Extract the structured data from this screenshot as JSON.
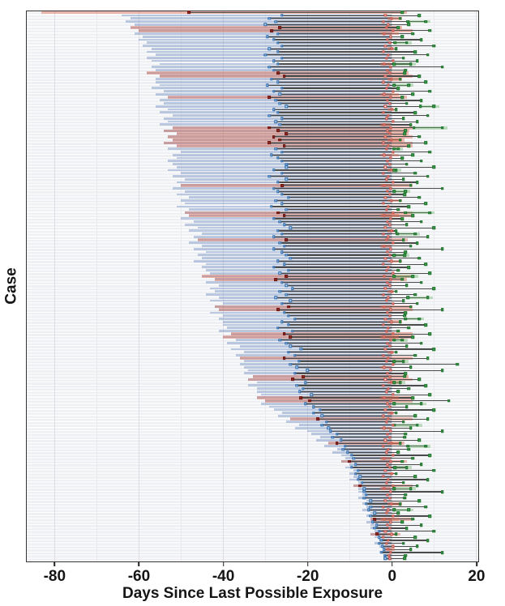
{
  "chart_data": {
    "type": "bar",
    "variant": "horizontal-interval-timeline",
    "title": "",
    "xlabel": "Days Since Last Possible Exposure",
    "ylabel": "Case",
    "n_cases": 181,
    "xlim": [
      -86.6,
      20.4
    ],
    "grid": "vertical-major-and-minor",
    "xticks": [
      -80,
      -60,
      -40,
      -20,
      0,
      20
    ],
    "xticklabels": [
      "-80",
      "-60",
      "-40",
      "-20",
      "0",
      "20"
    ],
    "xticks_minor": [
      -70,
      -50,
      -30,
      -10,
      10
    ],
    "colors": {
      "exposure_band": "rgba(99,134,191,0.42)",
      "detection_overlap_band": "rgba(90,100,115,0.38)",
      "onset_band_salmon": "rgba(220,106,82,0.45)",
      "detection_band_green": "rgba(96,176,96,0.38)",
      "stem_line": "#4b4b4b",
      "marker_blue": "#2565a8",
      "marker_red_open": "#c0392b",
      "marker_dark_red": "#8e2620",
      "marker_green": "#3da14d"
    },
    "case_fields": [
      "exposure_left",
      "mid_marker",
      "onset_marker",
      "detection_marker",
      "band_type(0=normal,1=wide-salmon,2=salmon-only)",
      "detection_band_width",
      "onset_band_width"
    ],
    "cases": [
      [
        -83,
        -48,
        -1,
        2.5,
        2,
        0,
        0
      ],
      [
        -64,
        -26,
        -1.5,
        6.5,
        0,
        0,
        0
      ],
      [
        -62,
        -29,
        0,
        2,
        0,
        0,
        3.5
      ],
      [
        -63,
        -27.5,
        -2,
        8,
        0,
        4.5,
        0
      ],
      [
        -61,
        -30,
        -0.8,
        4,
        0,
        0,
        0
      ],
      [
        -62,
        -26.5,
        -1.2,
        1.5,
        1,
        0,
        0
      ],
      [
        -60,
        -28.5,
        0.3,
        9,
        1,
        0,
        0
      ],
      [
        -61,
        -27,
        -1.8,
        5,
        0,
        0,
        4.5
      ],
      [
        -59,
        -29.5,
        -0.3,
        2.5,
        0,
        0,
        0
      ],
      [
        -60,
        -28,
        -1,
        7,
        0,
        0,
        0
      ],
      [
        -58,
        -27,
        -0.5,
        3.5,
        0,
        3,
        0
      ],
      [
        -59,
        -26,
        -1.5,
        10,
        0,
        0,
        0
      ],
      [
        -57,
        -29,
        0,
        1,
        0,
        0,
        1.5
      ],
      [
        -58,
        -27,
        -2,
        5.5,
        0,
        0,
        0
      ],
      [
        -56,
        -30,
        -0.8,
        8.5,
        0,
        0,
        0
      ],
      [
        -58,
        -26,
        -1.2,
        2.8,
        0,
        0,
        0
      ],
      [
        -57,
        -28,
        0.3,
        6,
        0,
        0,
        0
      ],
      [
        -55,
        -27,
        -1.8,
        4.5,
        0,
        6.5,
        2.5
      ],
      [
        -57,
        -29,
        -0.3,
        12,
        0,
        0,
        0
      ],
      [
        -56,
        -28,
        -1,
        3.2,
        0,
        0,
        0
      ],
      [
        -58,
        -27,
        -0.5,
        3,
        1,
        0,
        0
      ],
      [
        -55,
        -25.5,
        -1.5,
        6.5,
        1,
        0,
        0
      ],
      [
        -56,
        -28.5,
        0,
        2,
        0,
        0,
        3.5
      ],
      [
        -56,
        -27,
        -2,
        8,
        0,
        0,
        0
      ],
      [
        -55,
        -29.5,
        -0.8,
        4,
        0,
        5,
        0
      ],
      [
        -57,
        -26,
        -1.2,
        1.5,
        0,
        0,
        0
      ],
      [
        -54,
        -28,
        0.3,
        9,
        0,
        0,
        0
      ],
      [
        -56,
        -26.5,
        -1.8,
        5,
        0,
        0,
        4.5
      ],
      [
        -53,
        -29,
        -0.3,
        2.5,
        1,
        0,
        0
      ],
      [
        -55,
        -27.5,
        -1,
        7,
        0,
        0,
        0
      ],
      [
        -54,
        -26.5,
        -0.5,
        3.5,
        0,
        0,
        0
      ],
      [
        -56,
        -25,
        -1.5,
        10,
        0,
        3.5,
        0
      ],
      [
        -53,
        -28,
        0,
        1,
        0,
        0,
        1.5
      ],
      [
        -55,
        -27,
        -2,
        5.5,
        0,
        0,
        0
      ],
      [
        -52,
        -29,
        -0.8,
        8.5,
        0,
        0,
        0
      ],
      [
        -54,
        -26,
        -1.2,
        2.8,
        0,
        0,
        0
      ],
      [
        -53,
        -27.5,
        0.3,
        6,
        0,
        0,
        0
      ],
      [
        -55,
        -26.5,
        -1.8,
        4.5,
        0,
        0,
        2.5
      ],
      [
        -52,
        -29,
        -0.3,
        12,
        1,
        7,
        0
      ],
      [
        -54,
        -27,
        -1,
        3.2,
        1,
        0,
        0
      ],
      [
        -51,
        -25,
        -0.5,
        3,
        1,
        0,
        0
      ],
      [
        -53,
        -28,
        -1.5,
        6.5,
        1,
        0,
        0
      ],
      [
        -52,
        -26.5,
        0,
        2,
        1,
        0,
        3.5
      ],
      [
        -54,
        -29,
        -2,
        8,
        1,
        0,
        0
      ],
      [
        -51,
        -25.5,
        -0.8,
        4,
        1,
        0,
        0
      ],
      [
        -53,
        -27.5,
        -1.2,
        1.5,
        0,
        5.5,
        0
      ],
      [
        -50,
        -26,
        0.3,
        9,
        0,
        0,
        0
      ],
      [
        -52,
        -28.5,
        -1.8,
        5,
        0,
        0,
        4.5
      ],
      [
        -51,
        -27,
        -0.3,
        2.5,
        0,
        0,
        0
      ],
      [
        -53,
        -26,
        -1,
        7,
        0,
        0,
        0
      ],
      [
        -52,
        -25,
        -0.5,
        3.5,
        0,
        0,
        0
      ],
      [
        -51,
        -25,
        -1.5,
        10,
        0,
        0,
        0
      ],
      [
        -53,
        -28,
        0,
        1,
        0,
        4,
        1.5
      ],
      [
        -50,
        -26,
        -2,
        5.5,
        0,
        0,
        0
      ],
      [
        -52,
        -29,
        -0.8,
        8.5,
        0,
        0,
        0
      ],
      [
        -49,
        -25,
        -1.2,
        2.8,
        0,
        0,
        0
      ],
      [
        -51,
        -27,
        0.3,
        6,
        0,
        0,
        0
      ],
      [
        -50,
        -26,
        -1.8,
        4.5,
        1,
        0,
        2.5
      ],
      [
        -52,
        -28,
        -0.3,
        12,
        0,
        0,
        0
      ],
      [
        -49,
        -27,
        -1,
        3.2,
        0,
        7.5,
        0
      ],
      [
        -51,
        -26,
        -0.5,
        3,
        0,
        0,
        0
      ],
      [
        -48,
        -24.5,
        -1.5,
        6.5,
        0,
        0,
        0
      ],
      [
        -50,
        -27.5,
        0,
        2,
        0,
        0,
        3.5
      ],
      [
        -49,
        -26,
        -2,
        8,
        0,
        0,
        0
      ],
      [
        -51,
        -28.5,
        -0.8,
        4,
        0,
        0,
        0
      ],
      [
        -48,
        -25,
        -1.2,
        1.5,
        0,
        0,
        0
      ],
      [
        -49,
        -27,
        0.3,
        9,
        1,
        6,
        0
      ],
      [
        -48,
        -25.5,
        -1.8,
        5,
        1,
        0,
        4.5
      ],
      [
        -50,
        -28,
        -0.3,
        2.5,
        0,
        0,
        0
      ],
      [
        -47,
        -26.5,
        -1,
        7,
        0,
        0,
        0
      ],
      [
        -49,
        -25.5,
        -0.5,
        3.5,
        0,
        0,
        0
      ],
      [
        -46,
        -24,
        -1.5,
        10,
        0,
        0,
        0
      ],
      [
        -48,
        -27,
        0,
        1,
        0,
        0,
        1.5
      ],
      [
        -45,
        -26,
        -2,
        5.5,
        0,
        4.5,
        0
      ],
      [
        -47,
        -28,
        -0.8,
        8.5,
        0,
        0,
        0
      ],
      [
        -46,
        -25,
        -1.2,
        2.8,
        1,
        0,
        0
      ],
      [
        -48,
        -26.5,
        0.3,
        6,
        0,
        0,
        0
      ],
      [
        -45,
        -25.5,
        -1.8,
        4.5,
        0,
        0,
        2.5
      ],
      [
        -47,
        -28,
        -0.3,
        12,
        0,
        0,
        0
      ],
      [
        -44,
        -26,
        -1,
        3.2,
        0,
        0,
        0
      ],
      [
        -46,
        -25,
        -0.5,
        3,
        0,
        3,
        0
      ],
      [
        -45,
        -24,
        -1.5,
        6.5,
        0,
        0,
        0
      ],
      [
        -47,
        -27,
        0,
        2,
        0,
        0,
        3.5
      ],
      [
        -44,
        -25.5,
        -2,
        8,
        0,
        0,
        0
      ],
      [
        -45,
        -28,
        -0.8,
        4,
        0,
        0,
        0
      ],
      [
        -44,
        -24.5,
        -1.2,
        1.5,
        0,
        0,
        0
      ],
      [
        -43,
        -26.5,
        0.3,
        9,
        0,
        0,
        0
      ],
      [
        -45,
        -25,
        -1.8,
        5,
        1,
        6.5,
        0
      ],
      [
        -42,
        -27.5,
        -0.3,
        2.5,
        1,
        0,
        0
      ],
      [
        -44,
        -26,
        -1,
        7,
        0,
        0,
        0
      ],
      [
        -41,
        -25,
        -0.5,
        3.5,
        0,
        0,
        0
      ],
      [
        -43,
        -23.5,
        -1.5,
        10,
        0,
        0,
        0
      ],
      [
        -42,
        -26.5,
        0,
        1,
        0,
        0,
        1.5
      ],
      [
        -44,
        -25,
        -2,
        5.5,
        0,
        0,
        0
      ],
      [
        -41,
        -27.5,
        -0.8,
        8.5,
        0,
        5,
        0
      ],
      [
        -43,
        -24,
        -1.2,
        2.8,
        0,
        0,
        0
      ],
      [
        -40,
        -26,
        0.3,
        6,
        0,
        0,
        0
      ],
      [
        -42,
        -24.5,
        -1.8,
        4.5,
        1,
        0,
        2.5
      ],
      [
        -41,
        -27,
        -0.3,
        12,
        1,
        0,
        0
      ],
      [
        -43,
        -25.5,
        -1,
        3.2,
        0,
        0,
        0
      ],
      [
        -40,
        -24.5,
        -0.5,
        3,
        0,
        0,
        0
      ],
      [
        -41,
        -23,
        -1.5,
        6.5,
        0,
        3.5,
        0
      ],
      [
        -40,
        -26,
        0,
        2,
        0,
        0,
        3.5
      ],
      [
        -40,
        -24.5,
        -2,
        8,
        0,
        0,
        0
      ],
      [
        -39,
        -27,
        -0.8,
        4,
        0,
        0,
        0
      ],
      [
        -41,
        -23.5,
        -1.2,
        1.5,
        0,
        0,
        0
      ],
      [
        -38,
        -25.5,
        0.3,
        9,
        1,
        0,
        0
      ],
      [
        -40,
        -24,
        -1.8,
        5,
        1,
        0,
        4.5
      ],
      [
        -37,
        -26.5,
        -0.3,
        2.5,
        0,
        7,
        0
      ],
      [
        -39,
        -25,
        -1,
        7,
        0,
        0,
        0
      ],
      [
        -36,
        -24,
        -0.5,
        3.5,
        0,
        0,
        0
      ],
      [
        -38,
        -21.5,
        -1.5,
        10,
        0,
        0,
        0
      ],
      [
        -35,
        -24.5,
        0,
        1,
        0,
        0,
        1.5
      ],
      [
        -37,
        -23,
        -2,
        5.5,
        0,
        0,
        0
      ],
      [
        -36,
        -25.5,
        -0.8,
        8.5,
        1,
        0,
        0
      ],
      [
        -35,
        -22,
        -1.2,
        2.8,
        0,
        5.5,
        0
      ],
      [
        -36,
        -24,
        0.3,
        15.5,
        0,
        0,
        0
      ],
      [
        -35,
        -22.5,
        -1.8,
        4.5,
        0,
        0,
        2.5
      ],
      [
        -34,
        -20,
        -0.3,
        12,
        0,
        0,
        0
      ],
      [
        -35,
        -23,
        -1,
        3.2,
        0,
        0,
        0
      ],
      [
        -33,
        -21,
        -0.5,
        3,
        1,
        0,
        0
      ],
      [
        -34,
        -23.5,
        -1.5,
        6.5,
        1,
        0,
        0
      ],
      [
        -32,
        -20.5,
        0,
        2,
        0,
        4,
        3.5
      ],
      [
        -34,
        -22.5,
        -2,
        8,
        0,
        0,
        0
      ],
      [
        -32,
        -21,
        -0.8,
        4,
        0,
        0,
        0
      ],
      [
        -32,
        -21.8,
        -1.2,
        1.5,
        0,
        0,
        0
      ],
      [
        -31,
        -19,
        0.3,
        9,
        0,
        0,
        0
      ],
      [
        -32,
        -21.5,
        -1.8,
        5,
        1,
        0,
        4.5
      ],
      [
        -30,
        -19.5,
        -0.3,
        13.5,
        1,
        0,
        0
      ],
      [
        -31,
        -20.5,
        -1,
        7,
        0,
        7.5,
        0
      ],
      [
        -29,
        -18.5,
        -0.5,
        3.5,
        0,
        0,
        0
      ],
      [
        -28,
        -17,
        -1.5,
        10,
        0,
        0,
        0
      ],
      [
        -26,
        -18.5,
        0,
        1,
        0,
        0,
        1.5
      ],
      [
        -27,
        -16.5,
        -2,
        5.5,
        0,
        0,
        0
      ],
      [
        -24,
        -17.5,
        -0.8,
        8.5,
        1,
        0,
        0
      ],
      [
        -25,
        -15.5,
        -1.2,
        2.8,
        0,
        0,
        0
      ],
      [
        -22,
        -16.5,
        0.3,
        6,
        0,
        6,
        0
      ],
      [
        -23,
        -15,
        -1.8,
        4.5,
        0,
        0,
        2.5
      ],
      [
        -20,
        -14.5,
        -0.3,
        12,
        0,
        0,
        0
      ],
      [
        -19,
        -13,
        -1,
        3.2,
        0,
        0,
        0
      ],
      [
        -17,
        -14,
        -0.5,
        3,
        0,
        0,
        0
      ],
      [
        -18,
        -12,
        -1.5,
        6.5,
        0,
        0,
        0
      ],
      [
        -15,
        -13,
        0,
        2,
        1,
        0,
        3.5
      ],
      [
        -16,
        -11,
        -2,
        8,
        0,
        4.5,
        0
      ],
      [
        -13,
        -11.5,
        -0.8,
        4,
        0,
        0,
        0
      ],
      [
        -14,
        -10.5,
        -1.2,
        1.5,
        0,
        0,
        0
      ],
      [
        -12,
        -9.5,
        0.3,
        9,
        0,
        0,
        0
      ],
      [
        -11,
        -9,
        -1.8,
        5,
        0,
        0,
        2.5
      ],
      [
        -12,
        -10,
        -0.3,
        2.5,
        1,
        0,
        0
      ],
      [
        -10,
        -8.5,
        -1,
        7,
        0,
        0,
        0
      ],
      [
        -11,
        -9.5,
        -0.5,
        3.5,
        0,
        3,
        0
      ],
      [
        -9,
        -8,
        -1.5,
        10,
        0,
        0,
        0
      ],
      [
        -10,
        -8.5,
        0,
        1,
        0,
        0,
        1.5
      ],
      [
        -9,
        -7.5,
        -2,
        5.5,
        0,
        0,
        0
      ],
      [
        -10,
        -8,
        -0.8,
        8.5,
        0,
        0,
        0
      ],
      [
        -8,
        -7,
        -1.2,
        2.8,
        0,
        0,
        0
      ],
      [
        -9,
        -7.5,
        0.3,
        6,
        1,
        0,
        0
      ],
      [
        -8,
        -6.5,
        -1.8,
        4.5,
        0,
        6.5,
        2.5
      ],
      [
        -8,
        -6.5,
        -0.3,
        12,
        0,
        0,
        0
      ],
      [
        -7,
        -6,
        -1,
        3.2,
        0,
        0,
        0
      ],
      [
        -8,
        -6.5,
        -0.5,
        3,
        0,
        0,
        0
      ],
      [
        -6,
        -5,
        -1.5,
        6.5,
        0,
        0,
        0
      ],
      [
        -7,
        -6,
        0,
        2,
        0,
        0,
        3.5
      ],
      [
        -6,
        -5,
        -2,
        8,
        0,
        0,
        0
      ],
      [
        -7,
        -5.5,
        -0.8,
        4,
        0,
        5,
        0
      ],
      [
        -5,
        -4,
        -1.2,
        1.5,
        0,
        0,
        0
      ],
      [
        -6,
        -5,
        0.3,
        9,
        0,
        0,
        0
      ],
      [
        -5,
        -4,
        -1.8,
        5,
        1,
        0,
        4.5
      ],
      [
        -6,
        -4.5,
        -0.3,
        2.5,
        0,
        0,
        0
      ],
      [
        -5,
        -3.5,
        -1,
        7,
        0,
        0,
        0
      ],
      [
        -5,
        -4,
        -0.5,
        3.5,
        0,
        0,
        0
      ],
      [
        -4,
        -3,
        -1.5,
        10,
        0,
        0,
        0
      ],
      [
        -5,
        -3.5,
        0,
        1,
        1,
        0,
        1.5
      ],
      [
        -4,
        -3,
        -2,
        5.5,
        0,
        0,
        0
      ],
      [
        -3,
        -2.5,
        -0.8,
        8.5,
        0,
        0,
        0
      ],
      [
        -4,
        -3,
        -1.2,
        2.8,
        0,
        0,
        0
      ],
      [
        -3,
        -2.2,
        0.3,
        6,
        0,
        0,
        0
      ],
      [
        -2,
        -1.8,
        -0.8,
        4.5,
        0,
        0,
        2.5
      ],
      [
        -3,
        -2.4,
        -0.3,
        12,
        0,
        0,
        0
      ],
      [
        -2,
        -1.6,
        -0.6,
        3.2,
        0,
        0,
        0
      ],
      [
        -2,
        -1.5,
        -0.5,
        3,
        0,
        0,
        0
      ]
    ]
  }
}
